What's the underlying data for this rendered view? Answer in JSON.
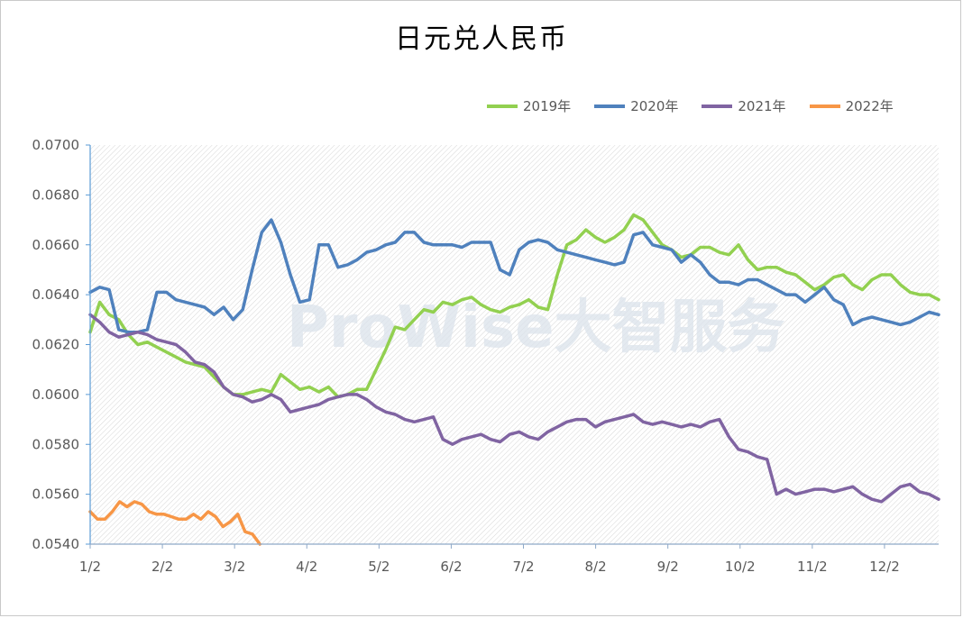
{
  "chart_data": {
    "type": "line",
    "title": "日元兑人民币",
    "xlabel": "",
    "ylabel": "",
    "x_ticks": [
      "1/2",
      "2/2",
      "3/2",
      "4/2",
      "5/2",
      "6/2",
      "7/2",
      "8/2",
      "9/2",
      "10/2",
      "11/2",
      "12/2"
    ],
    "ylim": [
      0.054,
      0.07
    ],
    "y_ticks": [
      "0.0540",
      "0.0560",
      "0.0580",
      "0.0600",
      "0.0620",
      "0.0640",
      "0.0660",
      "0.0680",
      "0.0700"
    ],
    "legend_position": "top-right",
    "grid": "hatched-background",
    "watermark": "ProWise大智服务",
    "series": [
      {
        "name": "2019年",
        "color": "#92d050",
        "values": [
          0.0625,
          0.0637,
          0.0632,
          0.063,
          0.0624,
          0.062,
          0.0621,
          0.0619,
          0.0617,
          0.0615,
          0.0613,
          0.0612,
          0.0611,
          0.0607,
          0.0603,
          0.06,
          0.06,
          0.0601,
          0.0602,
          0.0601,
          0.0608,
          0.0605,
          0.0602,
          0.0603,
          0.0601,
          0.0603,
          0.0599,
          0.06,
          0.0602,
          0.0602,
          0.061,
          0.0618,
          0.0627,
          0.0626,
          0.063,
          0.0634,
          0.0633,
          0.0637,
          0.0636,
          0.0638,
          0.0639,
          0.0636,
          0.0634,
          0.0633,
          0.0635,
          0.0636,
          0.0638,
          0.0635,
          0.0634,
          0.0648,
          0.066,
          0.0662,
          0.0666,
          0.0663,
          0.0661,
          0.0663,
          0.0666,
          0.0672,
          0.067,
          0.0665,
          0.066,
          0.0658,
          0.0655,
          0.0656,
          0.0659,
          0.0659,
          0.0657,
          0.0656,
          0.066,
          0.0654,
          0.065,
          0.0651,
          0.0651,
          0.0649,
          0.0648,
          0.0645,
          0.0642,
          0.0644,
          0.0647,
          0.0648,
          0.0644,
          0.0642,
          0.0646,
          0.0648,
          0.0648,
          0.0644,
          0.0641,
          0.064,
          0.064,
          0.0638
        ]
      },
      {
        "name": "2020年",
        "color": "#4f81bd",
        "values": [
          0.0641,
          0.0643,
          0.0642,
          0.0626,
          0.0625,
          0.0625,
          0.0626,
          0.0641,
          0.0641,
          0.0638,
          0.0637,
          0.0636,
          0.0635,
          0.0632,
          0.0635,
          0.063,
          0.0634,
          0.065,
          0.0665,
          0.067,
          0.0661,
          0.0648,
          0.0637,
          0.0638,
          0.066,
          0.066,
          0.0651,
          0.0652,
          0.0654,
          0.0657,
          0.0658,
          0.066,
          0.0661,
          0.0665,
          0.0665,
          0.0661,
          0.066,
          0.066,
          0.066,
          0.0659,
          0.0661,
          0.0661,
          0.0661,
          0.065,
          0.0648,
          0.0658,
          0.0661,
          0.0662,
          0.0661,
          0.0658,
          0.0657,
          0.0656,
          0.0655,
          0.0654,
          0.0653,
          0.0652,
          0.0653,
          0.0664,
          0.0665,
          0.066,
          0.0659,
          0.0658,
          0.0653,
          0.0656,
          0.0653,
          0.0648,
          0.0645,
          0.0645,
          0.0644,
          0.0646,
          0.0646,
          0.0644,
          0.0642,
          0.064,
          0.064,
          0.0637,
          0.064,
          0.0643,
          0.0638,
          0.0636,
          0.0628,
          0.063,
          0.0631,
          0.063,
          0.0629,
          0.0628,
          0.0629,
          0.0631,
          0.0633,
          0.0632
        ]
      },
      {
        "name": "2021年",
        "color": "#8064a2",
        "values": [
          0.0632,
          0.0629,
          0.0625,
          0.0623,
          0.0624,
          0.0625,
          0.0624,
          0.0622,
          0.0621,
          0.062,
          0.0617,
          0.0613,
          0.0612,
          0.0609,
          0.0603,
          0.06,
          0.0599,
          0.0597,
          0.0598,
          0.06,
          0.0598,
          0.0593,
          0.0594,
          0.0595,
          0.0596,
          0.0598,
          0.0599,
          0.06,
          0.06,
          0.0598,
          0.0595,
          0.0593,
          0.0592,
          0.059,
          0.0589,
          0.059,
          0.0591,
          0.0582,
          0.058,
          0.0582,
          0.0583,
          0.0584,
          0.0582,
          0.0581,
          0.0584,
          0.0585,
          0.0583,
          0.0582,
          0.0585,
          0.0587,
          0.0589,
          0.059,
          0.059,
          0.0587,
          0.0589,
          0.059,
          0.0591,
          0.0592,
          0.0589,
          0.0588,
          0.0589,
          0.0588,
          0.0587,
          0.0588,
          0.0587,
          0.0589,
          0.059,
          0.0583,
          0.0578,
          0.0577,
          0.0575,
          0.0574,
          0.056,
          0.0562,
          0.056,
          0.0561,
          0.0562,
          0.0562,
          0.0561,
          0.0562,
          0.0563,
          0.056,
          0.0558,
          0.0557,
          0.056,
          0.0563,
          0.0564,
          0.0561,
          0.056,
          0.0558
        ]
      },
      {
        "name": "2022年",
        "color": "#f79646",
        "values": [
          0.0553,
          0.055,
          0.055,
          0.0553,
          0.0557,
          0.0555,
          0.0557,
          0.0556,
          0.0553,
          0.0552,
          0.0552,
          0.0551,
          0.055,
          0.055,
          0.0552,
          0.055,
          0.0553,
          0.0551,
          0.0547,
          0.0549,
          0.0552,
          0.0545,
          0.0544,
          0.054
        ],
        "x_extent_month_index": 2.35
      }
    ]
  }
}
